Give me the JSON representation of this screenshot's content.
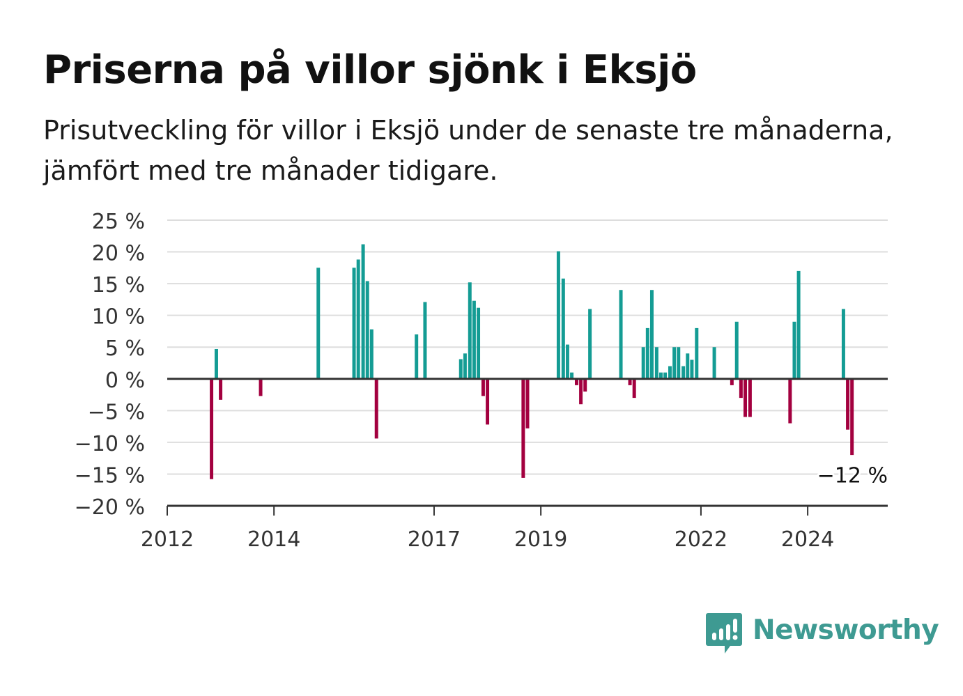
{
  "title": "Priserna på villor sjönk i Eksjö",
  "subtitle": "Prisutveckling för villor i Eksjö under de senaste tre månaderna, jämfört med tre månader tidigare.",
  "brand": {
    "name": "Newsworthy",
    "icon": "newsworthy-logo-icon"
  },
  "colors": {
    "positive": "#149c94",
    "negative": "#a3003f",
    "grid": "#dddddd",
    "axis": "#333333",
    "brand": "#3e9a92"
  },
  "chart_data": {
    "type": "bar",
    "x_unit": "year",
    "ylabel": "",
    "xlabel": "",
    "ylim": [
      -20,
      25
    ],
    "yticks": [
      25,
      20,
      15,
      10,
      5,
      0,
      -5,
      -10,
      -15,
      -20
    ],
    "ytick_labels": [
      "25 %",
      "20 %",
      "15 %",
      "10 %",
      "5 %",
      "0 %",
      "−5 %",
      "−10 %",
      "−15 %",
      "−20 %"
    ],
    "xlim": [
      2012.0,
      2025.5
    ],
    "xticks": [
      2012,
      2014,
      2017,
      2019,
      2022,
      2024
    ],
    "xtick_labels": [
      "2012",
      "2014",
      "2017",
      "2019",
      "2022",
      "2024"
    ],
    "grid": true,
    "points": [
      {
        "x": 2012.83,
        "y": -15.8
      },
      {
        "x": 2012.92,
        "y": 4.7
      },
      {
        "x": 2013.0,
        "y": -3.3
      },
      {
        "x": 2013.75,
        "y": -2.7
      },
      {
        "x": 2014.83,
        "y": 17.5
      },
      {
        "x": 2015.5,
        "y": 17.5
      },
      {
        "x": 2015.58,
        "y": 18.8
      },
      {
        "x": 2015.67,
        "y": 21.2
      },
      {
        "x": 2015.75,
        "y": 15.4
      },
      {
        "x": 2015.83,
        "y": 7.8
      },
      {
        "x": 2015.92,
        "y": -9.4
      },
      {
        "x": 2016.67,
        "y": 7.0
      },
      {
        "x": 2016.83,
        "y": 12.1
      },
      {
        "x": 2017.5,
        "y": 3.1
      },
      {
        "x": 2017.58,
        "y": 4.0
      },
      {
        "x": 2017.67,
        "y": 15.2
      },
      {
        "x": 2017.75,
        "y": 12.3
      },
      {
        "x": 2017.83,
        "y": 11.2
      },
      {
        "x": 2017.92,
        "y": -2.7
      },
      {
        "x": 2018.0,
        "y": -7.2
      },
      {
        "x": 2018.67,
        "y": -15.6
      },
      {
        "x": 2018.75,
        "y": -7.8
      },
      {
        "x": 2019.33,
        "y": 20.1
      },
      {
        "x": 2019.42,
        "y": 15.8
      },
      {
        "x": 2019.5,
        "y": 5.4
      },
      {
        "x": 2019.58,
        "y": 1.0
      },
      {
        "x": 2019.67,
        "y": -1.0
      },
      {
        "x": 2019.75,
        "y": -4.0
      },
      {
        "x": 2019.83,
        "y": -2.0
      },
      {
        "x": 2019.92,
        "y": 11.0
      },
      {
        "x": 2020.5,
        "y": 14.0
      },
      {
        "x": 2020.67,
        "y": -1.0
      },
      {
        "x": 2020.75,
        "y": -3.0
      },
      {
        "x": 2020.92,
        "y": 5.0
      },
      {
        "x": 2021.0,
        "y": 8.0
      },
      {
        "x": 2021.08,
        "y": 14.0
      },
      {
        "x": 2021.17,
        "y": 5.0
      },
      {
        "x": 2021.25,
        "y": 1.0
      },
      {
        "x": 2021.33,
        "y": 1.0
      },
      {
        "x": 2021.42,
        "y": 2.0
      },
      {
        "x": 2021.5,
        "y": 5.0
      },
      {
        "x": 2021.58,
        "y": 5.0
      },
      {
        "x": 2021.67,
        "y": 2.0
      },
      {
        "x": 2021.75,
        "y": 4.0
      },
      {
        "x": 2021.83,
        "y": 3.0
      },
      {
        "x": 2021.92,
        "y": 8.0
      },
      {
        "x": 2022.25,
        "y": 5.0
      },
      {
        "x": 2022.58,
        "y": -1.0
      },
      {
        "x": 2022.67,
        "y": 9.0
      },
      {
        "x": 2022.75,
        "y": -3.0
      },
      {
        "x": 2022.83,
        "y": -6.0
      },
      {
        "x": 2022.92,
        "y": -6.0
      },
      {
        "x": 2023.67,
        "y": -7.0
      },
      {
        "x": 2023.75,
        "y": 9.0
      },
      {
        "x": 2023.83,
        "y": 17.0
      },
      {
        "x": 2024.67,
        "y": 11.0
      },
      {
        "x": 2024.75,
        "y": -8.0
      },
      {
        "x": 2024.83,
        "y": -12.0
      }
    ],
    "annotation": {
      "x": 2024.83,
      "y": -12,
      "label": "−12 %"
    }
  }
}
